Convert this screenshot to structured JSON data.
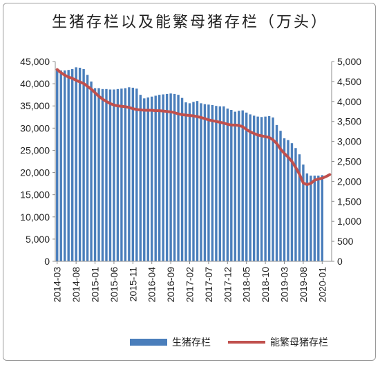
{
  "chart_data": {
    "type": "bar+line",
    "title": "生猪存栏以及能繁母猪存栏（万头）",
    "x": [
      "2014-03",
      "2014-04",
      "2014-05",
      "2014-06",
      "2014-07",
      "2014-08",
      "2014-09",
      "2014-10",
      "2014-11",
      "2014-12",
      "2015-01",
      "2015-02",
      "2015-03",
      "2015-04",
      "2015-05",
      "2015-06",
      "2015-07",
      "2015-08",
      "2015-09",
      "2015-10",
      "2015-11",
      "2015-12",
      "2016-01",
      "2016-02",
      "2016-03",
      "2016-04",
      "2016-05",
      "2016-06",
      "2016-07",
      "2016-08",
      "2016-09",
      "2016-10",
      "2016-11",
      "2016-12",
      "2017-01",
      "2017-02",
      "2017-03",
      "2017-04",
      "2017-05",
      "2017-06",
      "2017-07",
      "2017-08",
      "2017-09",
      "2017-10",
      "2017-11",
      "2017-12",
      "2018-01",
      "2018-02",
      "2018-03",
      "2018-04",
      "2018-05",
      "2018-06",
      "2018-07",
      "2018-08",
      "2018-09",
      "2018-10",
      "2018-11",
      "2018-12",
      "2019-01",
      "2019-02",
      "2019-03",
      "2019-04",
      "2019-05",
      "2019-06",
      "2019-07",
      "2019-08",
      "2019-09",
      "2019-10",
      "2019-11",
      "2019-12",
      "2020-01",
      "2020-02",
      "2020-03"
    ],
    "x_tick_labels": [
      "2014-03",
      "2014-08",
      "2015-01",
      "2015-06",
      "2015-11",
      "2016-04",
      "2016-09",
      "2017-02",
      "2017-07",
      "2017-12",
      "2018-05",
      "2018-10",
      "2019-03",
      "2019-08",
      "2020-01"
    ],
    "series": [
      {
        "name": "生猪存栏",
        "kind": "bar",
        "axis": "left",
        "color": "#4a7ebb",
        "values": [
          43200,
          43000,
          43000,
          43100,
          43300,
          43700,
          43600,
          43300,
          42000,
          40500,
          39000,
          39000,
          38800,
          38800,
          38700,
          38700,
          38800,
          38900,
          39000,
          39200,
          39100,
          38900,
          37500,
          36700,
          36900,
          37100,
          37300,
          37500,
          37600,
          37700,
          37800,
          37700,
          37500,
          36800,
          35800,
          35600,
          35900,
          36100,
          35600,
          35400,
          35300,
          35200,
          35000,
          34900,
          34900,
          34400,
          34100,
          33700,
          33900,
          34000,
          33500,
          33100,
          32800,
          32600,
          32500,
          32600,
          32700,
          32400,
          30700,
          29400,
          27700,
          27300,
          26600,
          25500,
          24100,
          21800,
          19800,
          19300,
          19300,
          19300,
          19400,
          null,
          null
        ]
      },
      {
        "name": "能繁母猪存栏",
        "kind": "line",
        "axis": "right",
        "color": "#c0504d",
        "values": [
          4800,
          4720,
          4660,
          4610,
          4580,
          4530,
          4490,
          4450,
          4380,
          4310,
          4220,
          4130,
          4060,
          4000,
          3950,
          3910,
          3890,
          3880,
          3870,
          3850,
          3820,
          3800,
          3790,
          3780,
          3780,
          3780,
          3770,
          3770,
          3760,
          3750,
          3740,
          3720,
          3690,
          3670,
          3660,
          3650,
          3640,
          3620,
          3600,
          3570,
          3540,
          3520,
          3500,
          3480,
          3460,
          3430,
          3410,
          3410,
          3400,
          3370,
          3300,
          3240,
          3200,
          3160,
          3140,
          3120,
          3100,
          3040,
          2950,
          2810,
          2700,
          2610,
          2500,
          2350,
          2180,
          1960,
          1920,
          1950,
          2030,
          2060,
          2080,
          2120,
          2170
        ]
      }
    ],
    "y_left": {
      "min": 0,
      "max": 45000,
      "step": 5000,
      "tick_labels": [
        "0",
        "5,000",
        "10,000",
        "15,000",
        "20,000",
        "25,000",
        "30,000",
        "35,000",
        "40,000",
        "45,000"
      ]
    },
    "y_right": {
      "min": 0,
      "max": 5000,
      "step": 500,
      "tick_labels": [
        "0",
        "500",
        "1,000",
        "1,500",
        "2,000",
        "2,500",
        "3,000",
        "3,500",
        "4,000",
        "4,500",
        "5,000"
      ]
    },
    "grid": false,
    "legend_position": "bottom"
  }
}
